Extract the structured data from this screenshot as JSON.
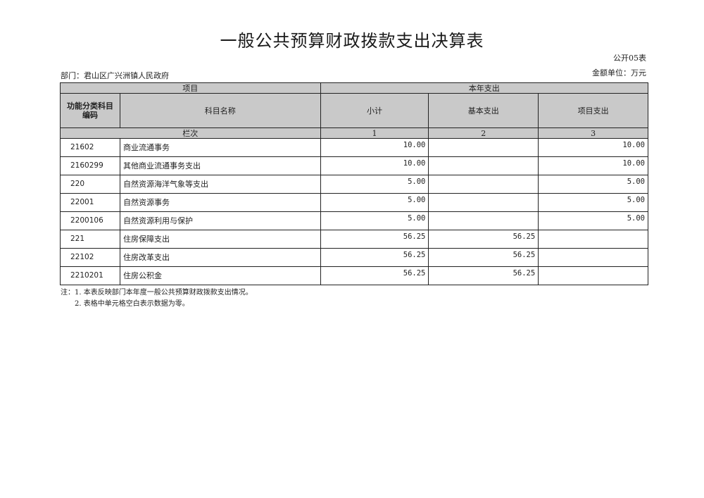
{
  "title": "一般公共预算财政拨款支出决算表",
  "table_no": "公开05表",
  "department": "部门：君山区广兴洲镇人民政府",
  "unit": "金额单位：万元",
  "headers": {
    "item": "项目",
    "current_year": "本年支出",
    "code": "功能分类科目编码",
    "name": "科目名称",
    "subtotal": "小计",
    "basic": "基本支出",
    "project": "项目支出",
    "column_index": "栏次",
    "col1": "1",
    "col2": "2",
    "col3": "3"
  },
  "rows": [
    {
      "code": "21602",
      "name": "商业流通事务",
      "subtotal": "10.00",
      "basic": "",
      "project": "10.00"
    },
    {
      "code": "2160299",
      "name": "其他商业流通事务支出",
      "subtotal": "10.00",
      "basic": "",
      "project": "10.00"
    },
    {
      "code": "220",
      "name": "自然资源海洋气象等支出",
      "subtotal": "5.00",
      "basic": "",
      "project": "5.00"
    },
    {
      "code": "22001",
      "name": "自然资源事务",
      "subtotal": "5.00",
      "basic": "",
      "project": "5.00"
    },
    {
      "code": "2200106",
      "name": "自然资源利用与保护",
      "subtotal": "5.00",
      "basic": "",
      "project": "5.00"
    },
    {
      "code": "221",
      "name": "住房保障支出",
      "subtotal": "56.25",
      "basic": "56.25",
      "project": ""
    },
    {
      "code": "22102",
      "name": "住房改革支出",
      "subtotal": "56.25",
      "basic": "56.25",
      "project": ""
    },
    {
      "code": "2210201",
      "name": "住房公积金",
      "subtotal": "56.25",
      "basic": "56.25",
      "project": ""
    }
  ],
  "notes": [
    "注：1. 本表反映部门本年度一般公共预算财政拨款支出情况。",
    "2. 表格中单元格空白表示数据为零。"
  ]
}
